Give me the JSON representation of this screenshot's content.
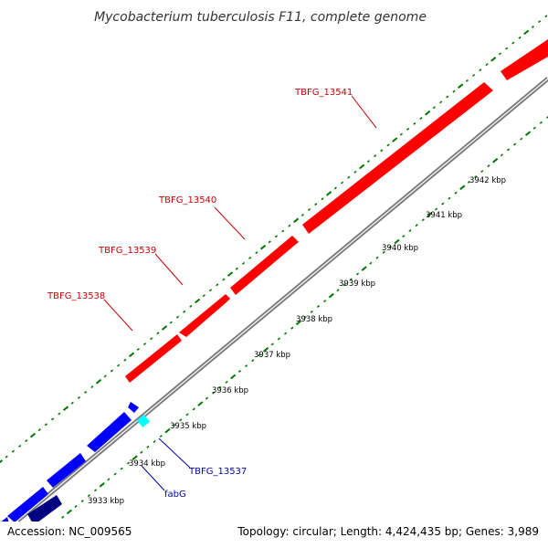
{
  "title": "Mycobacterium tuberculosis F11, complete genome",
  "footer": {
    "accession": "Accession: NC_009565",
    "summary": "Topology: circular; Length: 4,424,435 bp; Genes: 3,989"
  },
  "colors": {
    "forward_gene": "#ff0000",
    "reverse_gene": "#0000ff",
    "reverse_gene_dark": "#000080",
    "small_feature": "#00ffff",
    "backbone": "#999999",
    "tick": "#007700",
    "forward_label": "#cc0000",
    "reverse_label": "#0000aa"
  },
  "ticks": [
    {
      "label": "3933 kbp"
    },
    {
      "label": "3934 kbp"
    },
    {
      "label": "3935 kbp"
    },
    {
      "label": "3936 kbp"
    },
    {
      "label": "3937 kbp"
    },
    {
      "label": "3938 kbp"
    },
    {
      "label": "3939 kbp"
    },
    {
      "label": "3940 kbp"
    },
    {
      "label": "3941 kbp"
    },
    {
      "label": "3942 kbp"
    }
  ],
  "gene_labels": [
    {
      "text": "TBFG_13538",
      "strand": "forward"
    },
    {
      "text": "TBFG_13539",
      "strand": "forward"
    },
    {
      "text": "TBFG_13540",
      "strand": "forward"
    },
    {
      "text": "TBFG_13541",
      "strand": "forward"
    },
    {
      "text": "TBFG_13537",
      "strand": "reverse"
    },
    {
      "text": "fabG",
      "strand": "reverse"
    }
  ]
}
